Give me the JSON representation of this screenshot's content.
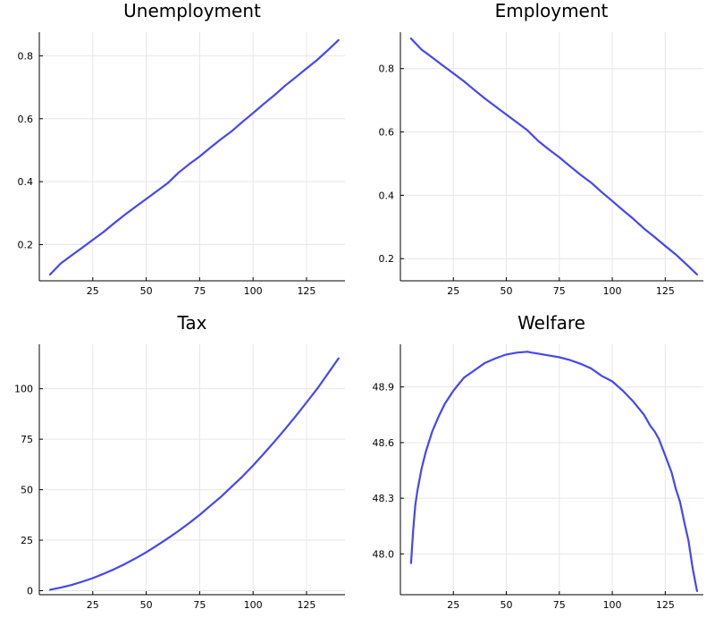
{
  "colors": {
    "series": "#4646f0",
    "grid": "#e6e6e6",
    "axis": "#000000"
  },
  "chart_data": [
    {
      "type": "line",
      "title": "Unemployment",
      "xlim": [
        0,
        143
      ],
      "ylim": [
        0.085,
        0.875
      ],
      "xticks": [
        25,
        50,
        75,
        100,
        125
      ],
      "yticks": [
        0.2,
        0.4,
        0.6,
        0.8
      ],
      "ytick_labels": [
        "0.2",
        "0.4",
        "0.6",
        "0.8"
      ],
      "grid": true,
      "series": [
        {
          "x": [
            5,
            10,
            15,
            20,
            25,
            30,
            35,
            40,
            45,
            50,
            55,
            60,
            65,
            70,
            75,
            80,
            85,
            90,
            95,
            100,
            105,
            110,
            115,
            120,
            125,
            130,
            135,
            140
          ],
          "values": [
            0.105,
            0.14,
            0.165,
            0.19,
            0.215,
            0.24,
            0.268,
            0.295,
            0.32,
            0.345,
            0.37,
            0.395,
            0.428,
            0.455,
            0.48,
            0.508,
            0.535,
            0.56,
            0.59,
            0.618,
            0.647,
            0.675,
            0.705,
            0.732,
            0.76,
            0.787,
            0.818,
            0.85
          ]
        }
      ]
    },
    {
      "type": "line",
      "title": "Employment",
      "xlim": [
        0,
        143
      ],
      "ylim": [
        0.13,
        0.915
      ],
      "xticks": [
        25,
        50,
        75,
        100,
        125
      ],
      "yticks": [
        0.2,
        0.4,
        0.6,
        0.8
      ],
      "ytick_labels": [
        "0.2",
        "0.4",
        "0.6",
        "0.8"
      ],
      "grid": true,
      "series": [
        {
          "x": [
            5,
            10,
            15,
            20,
            25,
            30,
            35,
            40,
            45,
            50,
            55,
            60,
            65,
            70,
            75,
            80,
            85,
            90,
            95,
            100,
            105,
            110,
            115,
            120,
            125,
            130,
            135,
            140
          ],
          "values": [
            0.895,
            0.86,
            0.835,
            0.81,
            0.785,
            0.76,
            0.732,
            0.705,
            0.68,
            0.655,
            0.63,
            0.605,
            0.572,
            0.545,
            0.52,
            0.492,
            0.465,
            0.44,
            0.41,
            0.382,
            0.353,
            0.325,
            0.295,
            0.268,
            0.24,
            0.213,
            0.182,
            0.15
          ]
        }
      ]
    },
    {
      "type": "line",
      "title": "Tax",
      "xlim": [
        0,
        143
      ],
      "ylim": [
        -2,
        122
      ],
      "xticks": [
        25,
        50,
        75,
        100,
        125
      ],
      "yticks": [
        0,
        25,
        50,
        75,
        100
      ],
      "ytick_labels": [
        "0",
        "25",
        "50",
        "75",
        "100"
      ],
      "grid": true,
      "series": [
        {
          "x": [
            5,
            10,
            15,
            20,
            25,
            30,
            35,
            40,
            45,
            50,
            55,
            60,
            65,
            70,
            75,
            80,
            85,
            90,
            95,
            100,
            105,
            110,
            115,
            120,
            125,
            130,
            135,
            140
          ],
          "values": [
            0.5,
            1.5,
            2.8,
            4.4,
            6.2,
            8.3,
            10.6,
            13.2,
            16.0,
            19.0,
            22.3,
            25.8,
            29.5,
            33.4,
            37.5,
            42.0,
            46.5,
            51.5,
            56.5,
            62.0,
            67.8,
            73.8,
            80.0,
            86.5,
            93.2,
            100.0,
            107.5,
            115.0
          ]
        }
      ]
    },
    {
      "type": "line",
      "title": "Welfare",
      "xlim": [
        0,
        143
      ],
      "ylim": [
        47.78,
        49.13
      ],
      "xticks": [
        25,
        50,
        75,
        100,
        125
      ],
      "yticks": [
        48.0,
        48.3,
        48.6,
        48.9
      ],
      "ytick_labels": [
        "48.0",
        "48.3",
        "48.6",
        "48.9"
      ],
      "grid": true,
      "series": [
        {
          "x": [
            5,
            6,
            7,
            8,
            10,
            12,
            15,
            18,
            21,
            25,
            30,
            35,
            40,
            45,
            50,
            55,
            60,
            62,
            65,
            70,
            75,
            80,
            85,
            90,
            95,
            100,
            105,
            110,
            115,
            118,
            120,
            122,
            125,
            128,
            130,
            132,
            134,
            136,
            138,
            140
          ],
          "values": [
            47.95,
            48.12,
            48.26,
            48.34,
            48.46,
            48.55,
            48.66,
            48.74,
            48.81,
            48.88,
            48.95,
            48.99,
            49.03,
            49.055,
            49.075,
            49.085,
            49.09,
            49.085,
            49.08,
            49.07,
            49.06,
            49.045,
            49.025,
            49.0,
            48.96,
            48.93,
            48.88,
            48.82,
            48.75,
            48.69,
            48.66,
            48.62,
            48.53,
            48.44,
            48.35,
            48.28,
            48.17,
            48.07,
            47.92,
            47.8
          ]
        }
      ]
    }
  ]
}
